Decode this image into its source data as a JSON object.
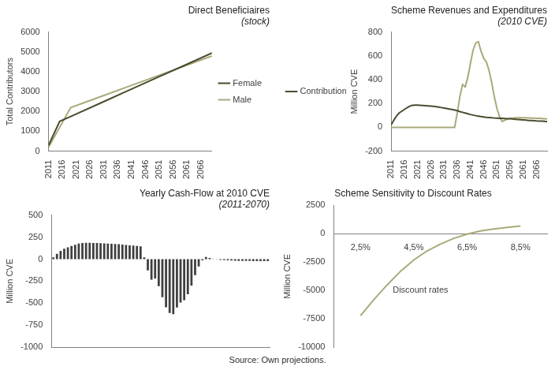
{
  "source": "Source: Own projections.",
  "chart_data": [
    {
      "type": "line",
      "title": "Direct Beneficiaires",
      "subtitle": "(stock)",
      "y_label": "Total Contributors",
      "x": [
        2011,
        2015,
        2019,
        2030,
        2040,
        2050,
        2060,
        2070
      ],
      "series": [
        {
          "name": "Female",
          "color": "#4b4b2f",
          "values": [
            300,
            1500,
            1750,
            2440,
            3070,
            3700,
            4320,
            4950
          ]
        },
        {
          "name": "Male",
          "color": "#a9a97b",
          "values": [
            200,
            1200,
            2200,
            2760,
            3270,
            3780,
            4290,
            4800
          ]
        }
      ],
      "xlim": [
        2011,
        2070
      ],
      "xticks": [
        2011,
        2016,
        2021,
        2026,
        2031,
        2036,
        2041,
        2046,
        2051,
        2056,
        2061,
        2066
      ],
      "ylim": [
        0,
        6000
      ],
      "yticks": [
        0,
        1000,
        2000,
        3000,
        4000,
        5000,
        6000
      ],
      "grid": false,
      "legend": "right"
    },
    {
      "type": "line",
      "title": "Scheme Revenues and Expenditures",
      "subtitle": "(2010 CVE)",
      "y_label": "Million CVE",
      "x": [
        2011,
        2012,
        2013,
        2014,
        2015,
        2016,
        2017,
        2018,
        2019,
        2020,
        2021,
        2022,
        2023,
        2024,
        2025,
        2026,
        2027,
        2028,
        2029,
        2030,
        2031,
        2032,
        2033,
        2034,
        2035,
        2036,
        2037,
        2038,
        2039,
        2040,
        2041,
        2042,
        2043,
        2044,
        2045,
        2046,
        2047,
        2048,
        2049,
        2050,
        2051,
        2052,
        2053,
        2054,
        2055,
        2056,
        2057,
        2058,
        2059,
        2060,
        2061,
        2062,
        2063,
        2064,
        2065,
        2066,
        2067,
        2068,
        2069,
        2070
      ],
      "series": [
        {
          "name": "Contributions",
          "color": "#4b4b2f",
          "values": [
            20,
            60,
            95,
            120,
            135,
            150,
            165,
            178,
            185,
            186,
            186,
            185,
            184,
            182,
            180,
            178,
            176,
            173,
            170,
            166,
            162,
            158,
            154,
            150,
            145,
            140,
            132,
            126,
            120,
            114,
            108,
            103,
            98,
            94,
            90,
            87,
            84,
            82,
            80,
            78,
            77,
            76,
            75,
            74,
            73,
            72,
            70,
            68,
            66,
            64,
            62,
            60,
            58,
            57,
            56,
            54,
            53,
            52,
            50,
            48
          ]
        },
        {
          "color": "#a9a97b",
          "values": [
            0,
            0,
            0,
            0,
            0,
            0,
            0,
            0,
            0,
            0,
            0,
            0,
            0,
            0,
            0,
            0,
            0,
            0,
            0,
            0,
            0,
            0,
            0,
            0,
            0,
            120,
            260,
            360,
            340,
            420,
            540,
            650,
            710,
            720,
            640,
            580,
            550,
            480,
            380,
            260,
            160,
            90,
            50,
            60,
            70,
            75,
            78,
            80,
            80,
            80,
            80,
            80,
            79,
            78,
            77,
            76,
            75,
            74,
            72,
            70
          ]
        }
      ],
      "xlim": [
        2011,
        2070
      ],
      "xticks": [
        2011,
        2016,
        2021,
        2026,
        2031,
        2036,
        2041,
        2046,
        2051,
        2056,
        2061,
        2066
      ],
      "ylim": [
        -200,
        800
      ],
      "yticks": [
        -200,
        0,
        200,
        400,
        600,
        800
      ],
      "grid": false,
      "legend": "left"
    },
    {
      "type": "bar",
      "title": "Yearly Cash-Flow at 2010 CVE",
      "subtitle": "(2011-2070)",
      "y_label": "Million CVE",
      "categories": [
        null,
        null,
        null,
        null,
        null,
        null,
        null,
        null,
        null,
        null,
        null,
        null,
        null,
        null,
        null,
        null,
        null,
        null,
        null,
        null,
        null,
        null,
        null,
        null,
        null,
        null,
        null,
        null,
        null,
        null,
        null,
        null,
        null,
        null,
        null,
        null,
        null,
        null,
        null,
        null,
        null,
        null,
        null,
        null,
        null,
        null,
        null,
        null,
        null,
        null,
        null,
        null,
        null,
        null,
        null,
        null,
        null,
        null,
        null,
        null
      ],
      "values": [
        20,
        60,
        95,
        120,
        135,
        150,
        165,
        178,
        185,
        186,
        186,
        185,
        184,
        182,
        180,
        178,
        176,
        173,
        170,
        166,
        162,
        158,
        154,
        150,
        145,
        20,
        -128,
        -234,
        -220,
        -306,
        -432,
        -547,
        -612,
        -626,
        -550,
        -493,
        -466,
        -398,
        -300,
        -182,
        -83,
        -14,
        25,
        14,
        3,
        -3,
        -8,
        -12,
        -14,
        -16,
        -18,
        -20,
        -21,
        -21,
        -21,
        -22,
        -22,
        -22,
        -22,
        -22
      ],
      "color": "#3f3f3f",
      "ylim": [
        -1000,
        500
      ],
      "yticks": [
        -1000,
        -750,
        -500,
        -250,
        0,
        250,
        500
      ],
      "grid": false,
      "tick_labels": "y"
    },
    {
      "type": "line",
      "title": "Scheme Sensitivity to Discount Rates",
      "y_label": "Million CVE",
      "x": [
        2.5,
        3,
        3.5,
        4,
        4.5,
        5,
        5.5,
        6,
        6.5,
        7,
        7.5,
        8,
        8.5
      ],
      "series": [
        {
          "color": "#a9a97b",
          "values": [
            -7200,
            -5800,
            -4500,
            -3300,
            -2300,
            -1500,
            -900,
            -400,
            -30,
            250,
            430,
            560,
            680
          ]
        }
      ],
      "xlim": [
        1.5,
        9.5
      ],
      "xticks": [
        {
          "value": 2.5,
          "label": "2,5%"
        },
        {
          "value": 4.5,
          "label": "4,5%"
        },
        {
          "value": 6.5,
          "label": "6,5%"
        },
        {
          "value": 8.5,
          "label": "8,5%"
        }
      ],
      "ylim": [
        -10000,
        2500
      ],
      "yticks": [
        -10000,
        -7500,
        -5000,
        -2500,
        0,
        2500
      ],
      "annotations": [
        {
          "text": "Discount rates",
          "x": 4.75,
          "y": -5000
        }
      ],
      "grid": false
    }
  ]
}
